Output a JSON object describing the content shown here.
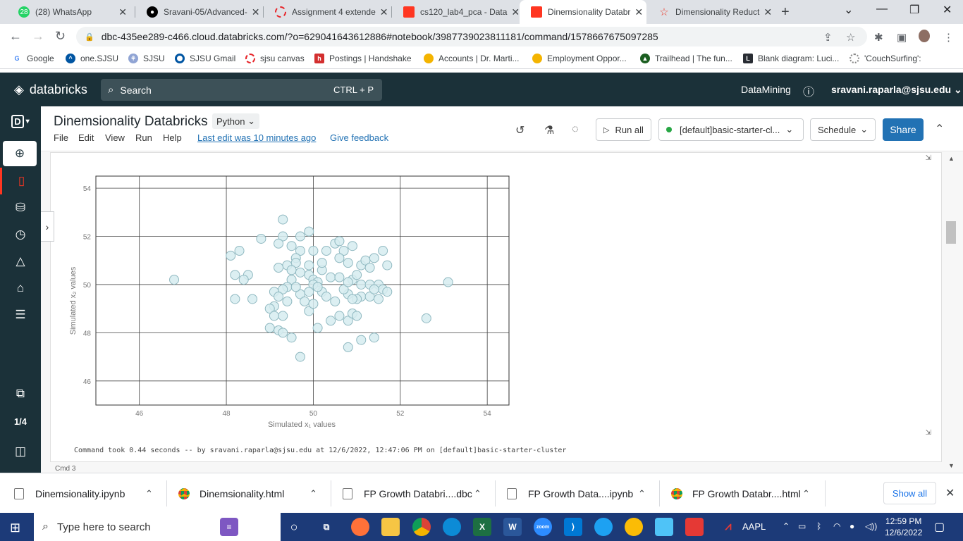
{
  "browser": {
    "tabs": [
      {
        "title": "(28) WhatsApp",
        "icon": "whatsapp-icon",
        "badge": "28",
        "color": "#25d366"
      },
      {
        "title": "Sravani-05/Advanced-",
        "icon": "github-icon",
        "color": "#000000"
      },
      {
        "title": "Assignment 4 extende",
        "icon": "canvas-icon",
        "color": "#e72429"
      },
      {
        "title": "cs120_lab4_pca - Data",
        "icon": "databricks-icon",
        "color": "#ff3621"
      },
      {
        "title": "Dinemsionality Databr",
        "icon": "databricks-icon",
        "color": "#ff3621"
      },
      {
        "title": "Dimensionality Reduct",
        "icon": "star-icon",
        "color": "#ea4335"
      }
    ],
    "url": "dbc-435ee289-c466.cloud.databricks.com/?o=629041643612886#notebook/3987739023811181/command/1578667675097285",
    "bookmarks": [
      {
        "label": "Google",
        "icon": "google-icon",
        "color": "#4285f4"
      },
      {
        "label": "one.SJSU",
        "icon": "sjsu-icon",
        "color": "#0055a2"
      },
      {
        "label": "SJSU",
        "icon": "sjsu-icon",
        "color": "#0055a2"
      },
      {
        "label": "SJSU Gmail",
        "icon": "gmail-icon",
        "color": "#0055a2"
      },
      {
        "label": "sjsu canvas",
        "icon": "canvas-icon",
        "color": "#e72429"
      },
      {
        "label": "Postings | Handshake",
        "icon": "handshake-icon",
        "color": "#d32f2f"
      },
      {
        "label": "Accounts | Dr. Marti...",
        "icon": "bulb-icon",
        "color": "#f4b400"
      },
      {
        "label": "Employment Oppor...",
        "icon": "bulb-icon",
        "color": "#f4b400"
      },
      {
        "label": "Trailhead | The fun...",
        "icon": "trailhead-icon",
        "color": "#1b5e20"
      },
      {
        "label": "Blank diagram: Luci...",
        "icon": "lucid-icon",
        "color": "#282c33"
      },
      {
        "label": "'CouchSurfing':",
        "icon": "couchsurfing-icon",
        "color": "#888888"
      }
    ]
  },
  "databricks": {
    "brand": "databricks",
    "search_placeholder": "Search",
    "search_shortcut": "CTRL + P",
    "workspace": "DataMining",
    "user": "sravani.raparla@sjsu.edu",
    "rail_counter": "1/4",
    "notebook_title": "Dinemsionality Databricks",
    "language": "Python",
    "menus": [
      "File",
      "Edit",
      "View",
      "Run",
      "Help"
    ],
    "last_edit": "Last edit was 10 minutes ago",
    "feedback": "Give feedback",
    "run_all": "Run all",
    "cluster": "[default]basic-starter-cl...",
    "schedule": "Schedule",
    "share": "Share",
    "command_took": "Command took 0.44 seconds -- by sravani.raparla@sjsu.edu at 12/6/2022, 12:47:06 PM on [default]basic-starter-cluster",
    "next_cmd": "Cmd 3"
  },
  "chart_data": {
    "type": "scatter",
    "title": "",
    "xlabel": "Simulated x₁ values",
    "ylabel": "Simulated x₂ values",
    "xlim": [
      45,
      54.5
    ],
    "ylim": [
      45,
      54.5
    ],
    "xticks": [
      46,
      48,
      50,
      52,
      54
    ],
    "yticks": [
      46,
      48,
      50,
      52,
      54
    ],
    "grid": true,
    "marker_color": "#d6ecf0",
    "marker_edge": "#8fb8c0",
    "points": [
      [
        46.8,
        50.2
      ],
      [
        48.1,
        51.2
      ],
      [
        48.3,
        51.4
      ],
      [
        48.5,
        50.4
      ],
      [
        48.2,
        50.4
      ],
      [
        48.4,
        50.2
      ],
      [
        48.2,
        49.4
      ],
      [
        48.6,
        49.4
      ],
      [
        48.8,
        51.9
      ],
      [
        49.3,
        52.7
      ],
      [
        49.3,
        52.0
      ],
      [
        49.2,
        51.7
      ],
      [
        49.5,
        51.6
      ],
      [
        49.7,
        51.4
      ],
      [
        49.9,
        52.2
      ],
      [
        49.7,
        52.0
      ],
      [
        49.6,
        51.1
      ],
      [
        49.6,
        50.9
      ],
      [
        49.4,
        50.8
      ],
      [
        49.2,
        50.7
      ],
      [
        49.5,
        50.6
      ],
      [
        49.7,
        50.5
      ],
      [
        49.5,
        50.2
      ],
      [
        49.4,
        49.9
      ],
      [
        49.3,
        49.8
      ],
      [
        49.1,
        49.7
      ],
      [
        49.2,
        49.5
      ],
      [
        49.1,
        49.1
      ],
      [
        49.0,
        49.0
      ],
      [
        49.3,
        48.7
      ],
      [
        49.4,
        49.3
      ],
      [
        49.7,
        49.6
      ],
      [
        49.8,
        49.3
      ],
      [
        49.9,
        48.9
      ],
      [
        49.1,
        48.7
      ],
      [
        49.0,
        48.2
      ],
      [
        49.2,
        48.1
      ],
      [
        49.3,
        48.0
      ],
      [
        49.5,
        47.8
      ],
      [
        49.7,
        47.0
      ],
      [
        49.9,
        50.8
      ],
      [
        49.9,
        50.4
      ],
      [
        50.0,
        50.2
      ],
      [
        50.1,
        50.1
      ],
      [
        50.2,
        50.6
      ],
      [
        50.2,
        50.9
      ],
      [
        50.3,
        51.4
      ],
      [
        50.0,
        51.4
      ],
      [
        50.5,
        51.7
      ],
      [
        50.6,
        51.8
      ],
      [
        50.7,
        51.4
      ],
      [
        50.6,
        51.1
      ],
      [
        50.8,
        50.9
      ],
      [
        50.9,
        51.6
      ],
      [
        50.4,
        50.3
      ],
      [
        50.6,
        50.3
      ],
      [
        50.9,
        50.2
      ],
      [
        51.0,
        50.4
      ],
      [
        51.1,
        50.8
      ],
      [
        51.2,
        51.0
      ],
      [
        51.3,
        50.7
      ],
      [
        51.4,
        51.1
      ],
      [
        51.6,
        51.4
      ],
      [
        51.7,
        50.8
      ],
      [
        51.1,
        50.0
      ],
      [
        51.3,
        50.0
      ],
      [
        51.5,
        50.0
      ],
      [
        51.6,
        49.8
      ],
      [
        51.7,
        49.7
      ],
      [
        51.1,
        49.5
      ],
      [
        51.3,
        49.5
      ],
      [
        51.5,
        49.4
      ],
      [
        51.0,
        49.4
      ],
      [
        50.8,
        49.6
      ],
      [
        50.7,
        49.8
      ],
      [
        50.5,
        49.3
      ],
      [
        50.2,
        49.7
      ],
      [
        50.3,
        49.5
      ],
      [
        50.0,
        49.2
      ],
      [
        50.4,
        48.5
      ],
      [
        50.1,
        48.2
      ],
      [
        50.6,
        48.7
      ],
      [
        50.8,
        48.5
      ],
      [
        50.9,
        48.8
      ],
      [
        51.0,
        48.7
      ],
      [
        50.8,
        47.4
      ],
      [
        51.1,
        47.7
      ],
      [
        51.4,
        47.8
      ],
      [
        52.6,
        48.6
      ],
      [
        53.1,
        50.1
      ],
      [
        50.0,
        50.0
      ],
      [
        50.1,
        49.9
      ],
      [
        49.9,
        49.7
      ],
      [
        49.6,
        49.9
      ],
      [
        50.8,
        50.1
      ],
      [
        50.9,
        49.4
      ],
      [
        51.4,
        49.8
      ]
    ]
  },
  "downloads": [
    {
      "name": "Dinemsionality.ipynb",
      "icon": "file-icon"
    },
    {
      "name": "Dinemsionality.html",
      "icon": "chrome-icon"
    },
    {
      "name": "FP Growth Databri....dbc",
      "icon": "file-icon"
    },
    {
      "name": "FP Growth Data....ipynb",
      "icon": "file-icon"
    },
    {
      "name": "FP Growth Databr....html",
      "icon": "chrome-icon"
    }
  ],
  "downloads_show_all": "Show all",
  "taskbar": {
    "search_placeholder": "Type here to search",
    "ticker": "AAPL",
    "time": "12:59 PM",
    "date": "12/6/2022"
  }
}
